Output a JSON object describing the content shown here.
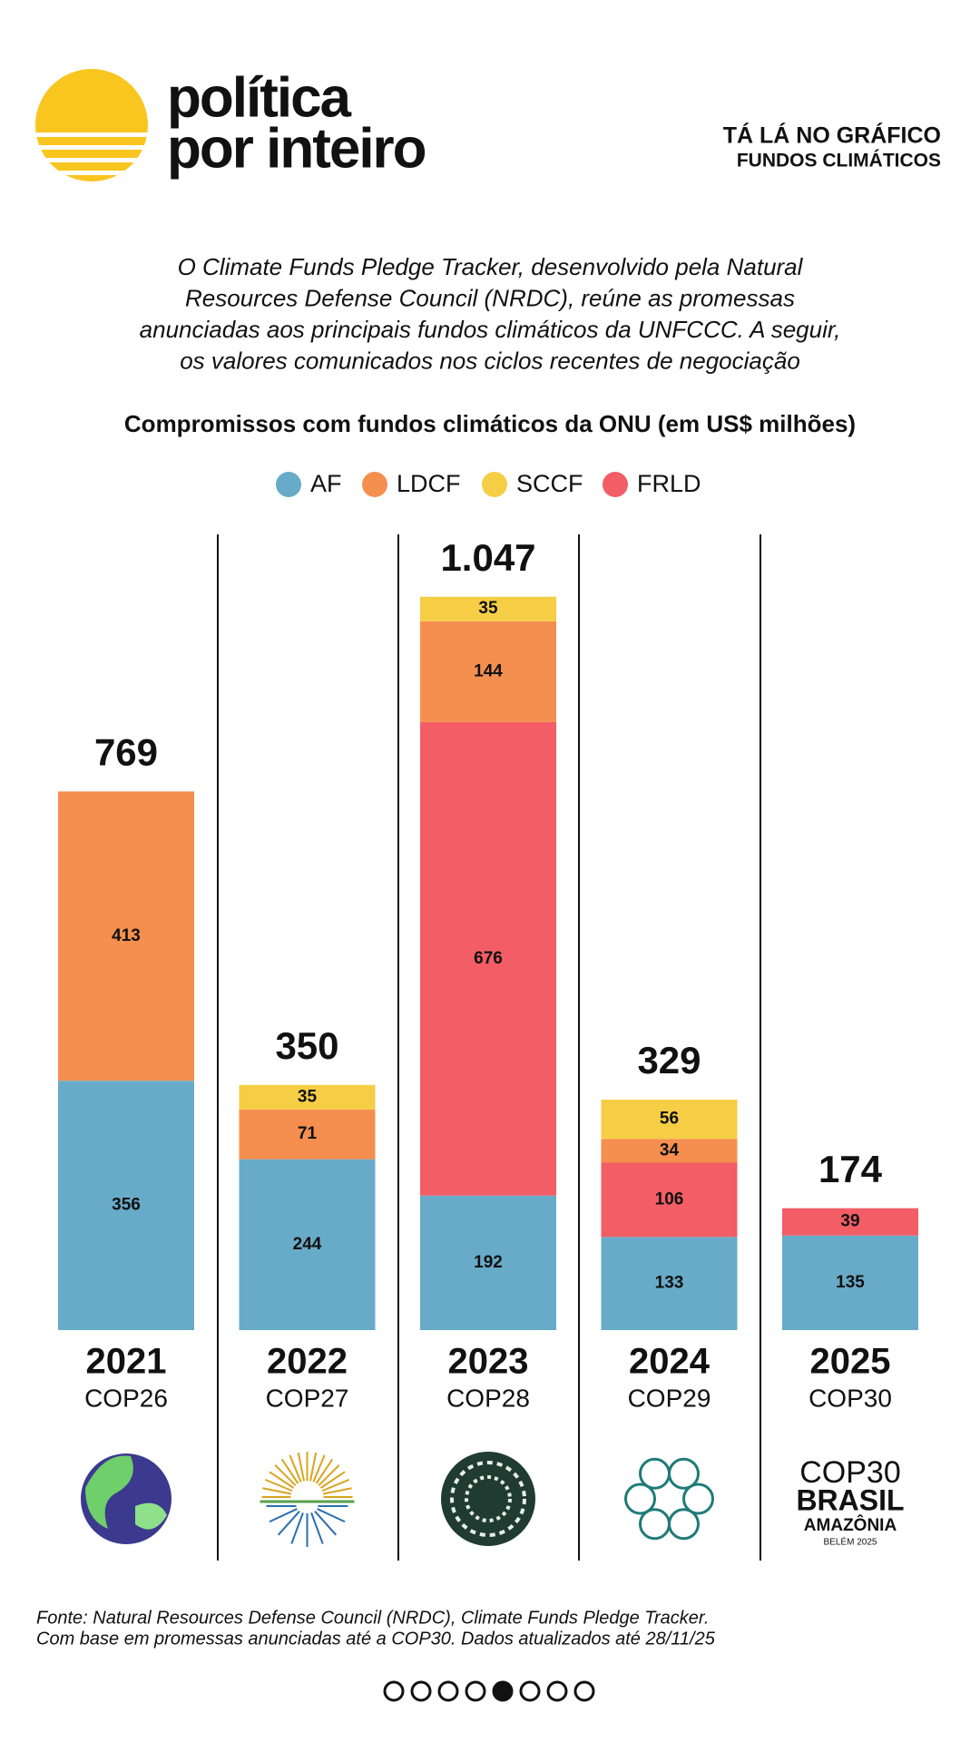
{
  "header": {
    "brand_lines": [
      "política",
      "por inteiro"
    ],
    "section": "TÁ LÁ NO GRÁFICO",
    "topic": "FUNDOS CLIMÁTICOS"
  },
  "intro_lines": [
    "O Climate Funds Pledge Tracker, desenvolvido pela Natural",
    "Resources Defense Council (NRDC), reúne as promessas",
    "anunciadas aos principais fundos climáticos da UNFCCC. A seguir,",
    "os valores comunicados nos ciclos recentes de negociação"
  ],
  "chart_data": {
    "type": "stacked_bar",
    "title": "Compromissos com fundos climáticos da ONU (em US$ milhões)",
    "categories": [
      "2021",
      "2022",
      "2023",
      "2024",
      "2025"
    ],
    "subcategories": [
      "COP26",
      "COP27",
      "COP28",
      "COP29",
      "COP30"
    ],
    "series": [
      {
        "name": "AF",
        "color": "#68abc9",
        "values": [
          356,
          244,
          192,
          133,
          135
        ]
      },
      {
        "name": "LDCF",
        "color": "#f58f4f",
        "values": [
          413,
          71,
          144,
          34,
          null
        ]
      },
      {
        "name": "SCCF",
        "color": "#f5ce45",
        "values": [
          null,
          35,
          35,
          56,
          null
        ]
      },
      {
        "name": "FRLD",
        "color": "#f25d66",
        "values": [
          null,
          null,
          676,
          106,
          39
        ]
      }
    ],
    "totals": [
      769,
      350,
      1047,
      329,
      174
    ],
    "totals_value_labels": [
      "769",
      "350",
      "1.047",
      "329",
      "174"
    ]
  },
  "cop30_logo": [
    "COP30",
    "BRASIL",
    "AMAZÔNIA",
    "BELÉM 2025"
  ],
  "footer_lines": [
    "Fonte: Natural Resources Defense Council (NRDC), Climate Funds Pledge Tracker.",
    "Com base em promessas anunciadas até a COP30. Dados atualizados até 28/11/25"
  ]
}
